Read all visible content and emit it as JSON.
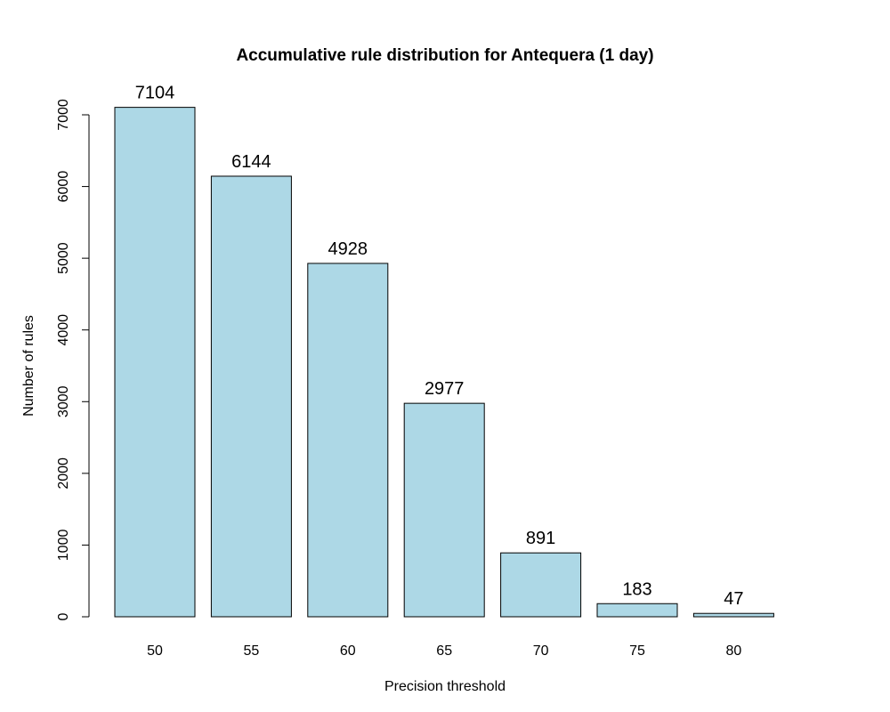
{
  "chart_data": {
    "type": "bar",
    "title": "Accumulative rule distribution for Antequera (1 day)",
    "xlabel": "Precision threshold",
    "ylabel": "Number of rules",
    "categories": [
      "50",
      "55",
      "60",
      "65",
      "70",
      "75",
      "80"
    ],
    "values": [
      7104,
      6144,
      4928,
      2977,
      891,
      183,
      47
    ],
    "data_labels": [
      "7104",
      "6144",
      "4928",
      "2977",
      "891",
      "183",
      "47"
    ],
    "yticks": [
      0,
      1000,
      2000,
      3000,
      4000,
      5000,
      6000,
      7000
    ],
    "ytick_labels": [
      "0",
      "1000",
      "2000",
      "3000",
      "4000",
      "5000",
      "6000",
      "7000"
    ],
    "ylim": [
      0,
      7000
    ],
    "grid": false,
    "legend": "none",
    "colors": {
      "bar_fill": "#add8e6",
      "bar_stroke": "#000000",
      "background": "#ffffff"
    }
  }
}
